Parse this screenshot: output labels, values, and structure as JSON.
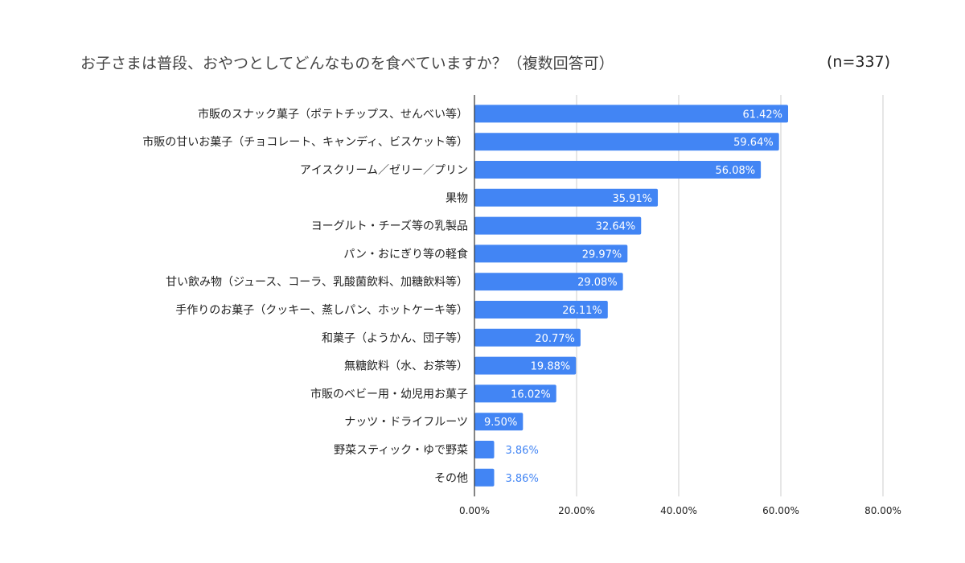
{
  "chart_data": {
    "type": "bar",
    "orientation": "horizontal",
    "title": "お子さまは普段、おやつとしてどんなものを食べていますか？（複数回答可）",
    "subtitle": "(n=337)",
    "categories": [
      "市販のスナック菓子（ポテトチップス、せんべい等）",
      "市販の甘いお菓子（チョコレート、キャンディ、ビスケット等）",
      "アイスクリーム／ゼリー／プリン",
      "果物",
      "ヨーグルト・チーズ等の乳製品",
      "パン・おにぎり等の軽食",
      "甘い飲み物（ジュース、コーラ、乳酸菌飲料、加糖飲料等）",
      "手作りのお菓子（クッキー、蒸しパン、ホットケーキ等）",
      "和菓子（ようかん、団子等）",
      "無糖飲料（水、お茶等）",
      "市販のベビー用・幼児用お菓子",
      "ナッツ・ドライフルーツ",
      "野菜スティック・ゆで野菜",
      "その他"
    ],
    "values": [
      61.42,
      59.64,
      56.08,
      35.91,
      32.64,
      29.97,
      29.08,
      26.11,
      20.77,
      19.88,
      16.02,
      9.5,
      3.86,
      3.86
    ],
    "data_labels": [
      "61.42%",
      "59.64%",
      "56.08%",
      "35.91%",
      "32.64%",
      "29.97%",
      "29.08%",
      "26.11%",
      "20.77%",
      "19.88%",
      "16.02%",
      "9.50%",
      "3.86%",
      "3.86%"
    ],
    "x_ticks": [
      0,
      20,
      40,
      60,
      80
    ],
    "x_tick_labels": [
      "0.00%",
      "20.00%",
      "40.00%",
      "60.00%",
      "80.00%"
    ],
    "xlim": [
      0,
      80
    ],
    "xlabel": "",
    "ylabel": "",
    "grid": true,
    "colors": {
      "bar": "#4285f4",
      "label_inside": "#ffffff",
      "label_outside": "#4285f4",
      "gridline": "#cccccc",
      "axis": "#333333",
      "text": "#222222"
    }
  }
}
